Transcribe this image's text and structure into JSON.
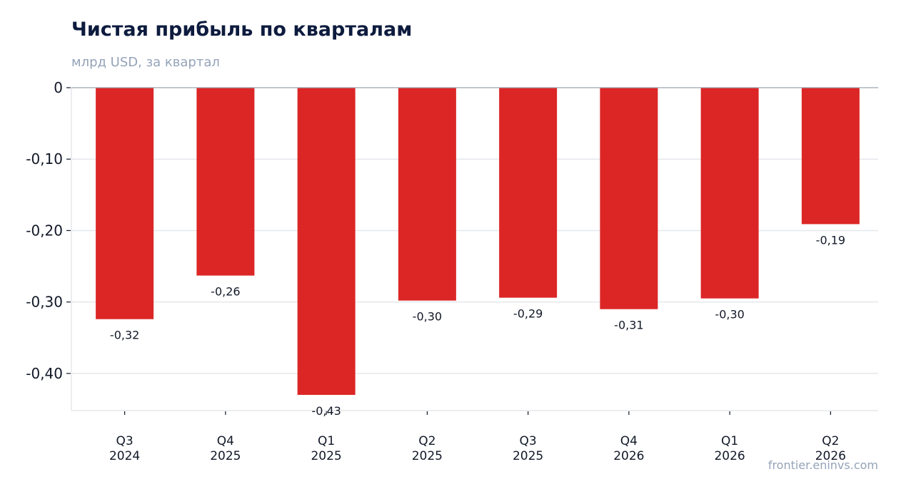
{
  "header": {
    "title": "Чистая прибыль по кварталам",
    "subtitle": "млрд USD, за квартал"
  },
  "footer": {
    "credit": "frontier.eninvs.com"
  },
  "colors": {
    "bar": "#dc2626",
    "grid": "#e5e7eb",
    "axis": "#9ca3af",
    "text": "#111827",
    "title": "#0d1b3e",
    "muted": "#94a3b8"
  },
  "chart_data": {
    "type": "bar",
    "title": "Чистая прибыль по кварталам",
    "subtitle": "млрд USD, за квартал",
    "xlabel": "",
    "ylabel": "",
    "categories": [
      [
        "Q3",
        "2024"
      ],
      [
        "Q4",
        "2025"
      ],
      [
        "Q1",
        "2025"
      ],
      [
        "Q2",
        "2025"
      ],
      [
        "Q3",
        "2025"
      ],
      [
        "Q4",
        "2026"
      ],
      [
        "Q1",
        "2026"
      ],
      [
        "Q2",
        "2026"
      ]
    ],
    "values": [
      -0.324,
      -0.263,
      -0.43,
      -0.298,
      -0.294,
      -0.31,
      -0.295,
      -0.191
    ],
    "data_labels": [
      "-0,32",
      "-0,26",
      "-0,43",
      "-0,30",
      "-0,29",
      "-0,31",
      "-0,30",
      "-0,19"
    ],
    "yticks": [
      0,
      -0.1,
      -0.2,
      -0.3,
      -0.4
    ],
    "ytick_labels": [
      "0",
      "-0,10",
      "-0,20",
      "-0,30",
      "-0,40"
    ],
    "ylim": [
      -0.452,
      0
    ],
    "grid": true,
    "legend": "none"
  }
}
